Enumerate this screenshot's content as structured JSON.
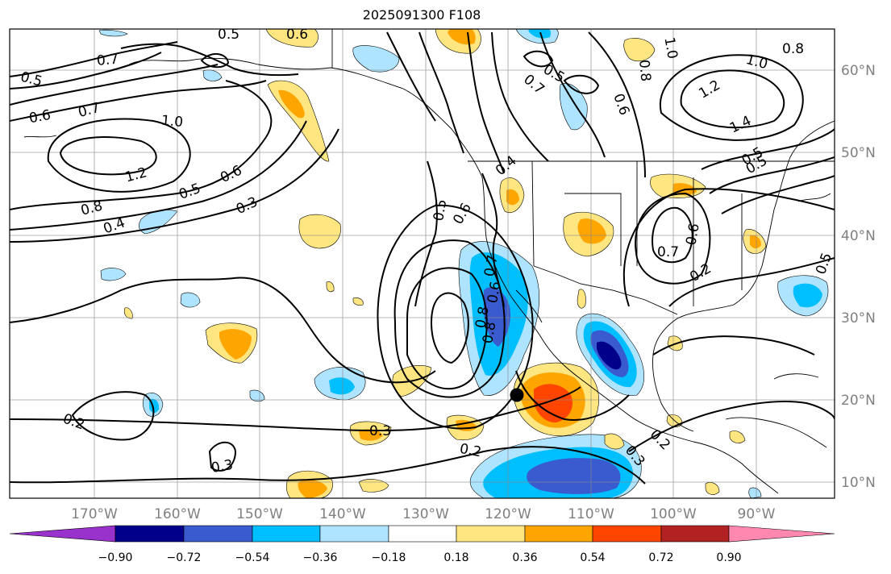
{
  "title": "2025091300 F108",
  "map": {
    "lon_labels": [
      "170°W",
      "160°W",
      "150°W",
      "140°W",
      "130°W",
      "120°W",
      "110°W",
      "100°W",
      "90°W"
    ],
    "lat_labels": [
      "60°N",
      "50°N",
      "40°N",
      "30°N",
      "20°N",
      "10°N"
    ],
    "contour_labels": [
      "0.5",
      "0.6",
      "0.7",
      "0.5",
      "0.6",
      "0.7",
      "1.0",
      "1.2",
      "0.8",
      "0.4",
      "0.5",
      "0.6",
      "0.3",
      "0.2",
      "0.3",
      "0.3",
      "0.2",
      "0.5",
      "0.6",
      "0.7",
      "0.8",
      "0.6",
      "0.8",
      "0.4",
      "0.5",
      "0.7",
      "1.0",
      "0.8",
      "0.8",
      "1.0",
      "1.2",
      "1.4",
      "0.5",
      "0.6",
      "0.7",
      "0.6",
      "0.2",
      "0.2",
      "0.3",
      "0.5",
      "0.5"
    ],
    "marker": "storm-position"
  },
  "colorbar": {
    "tick_labels": [
      "−0.90",
      "−0.72",
      "−0.54",
      "−0.36",
      "−0.18",
      "0.18",
      "0.36",
      "0.54",
      "0.72",
      "0.90"
    ],
    "colors": [
      "#9932cc",
      "#00008b",
      "#3a5bd0",
      "#00bfff",
      "#aee4ff",
      "#ffffff",
      "#ffe680",
      "#ffa500",
      "#ff4500",
      "#b22222",
      "#ff88b0"
    ]
  }
}
